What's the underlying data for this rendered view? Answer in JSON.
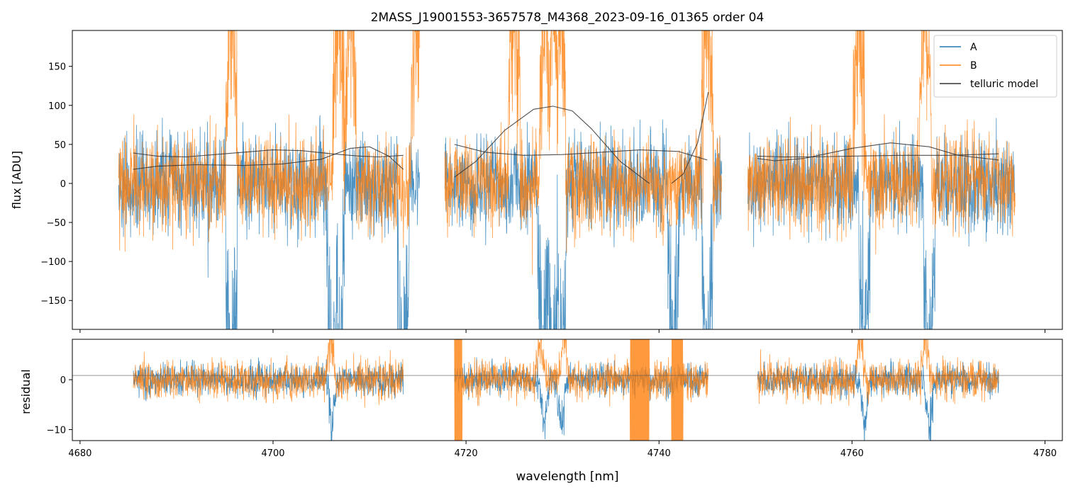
{
  "chart_data": {
    "type": "line",
    "title": "2MASS_J19001553-3657578_M4368_2023-09-16_01365  order 04",
    "xlabel": "wavelength [nm]",
    "xlim": [
      4679.2,
      4781.8
    ],
    "x_ticks": [
      4680,
      4700,
      4720,
      4740,
      4760,
      4780
    ],
    "x_tick_labels": [
      "4680",
      "4700",
      "4720",
      "4740",
      "4760",
      "4780"
    ],
    "panels": [
      {
        "name": "flux",
        "ylabel": "flux [ADU]",
        "ylim": [
          -187,
          196
        ],
        "y_ticks": [
          -150,
          -100,
          -50,
          0,
          50,
          100,
          150
        ],
        "y_tick_labels": [
          "−150",
          "−100",
          "−50",
          "0",
          "50",
          "100",
          "150"
        ],
        "legend": {
          "position": "top-right",
          "entries": [
            "A",
            "B",
            "telluric model"
          ]
        },
        "segments": [
          [
            4684.0,
            4715.2
          ],
          [
            4717.8,
            4746.5
          ],
          [
            4749.2,
            4776.9
          ]
        ],
        "spikes_A": [
          4695.7,
          4706.1,
          4706.8,
          4713.5,
          4728.0,
          4729.0,
          4729.8,
          4741.5,
          4745.0,
          4761.3,
          4768.0
        ],
        "spikes_B": [
          4695.7,
          4706.8,
          4708.0,
          4714.9,
          4725.0,
          4728.2,
          4729.0,
          4729.7,
          4745.0,
          4760.7,
          4767.6
        ],
        "telluric_model": [
          {
            "x": [
              4685.5,
              4688,
              4691,
              4695,
              4700,
              4703,
              4706,
              4709,
              4711,
              4713.5
            ],
            "y": [
              39,
              35,
              34,
              38,
              43,
              42,
              38,
              35,
              34,
              36
            ]
          },
          {
            "x": [
              4685.5,
              4688,
              4692,
              4697,
              4701,
              4705,
              4708,
              4710,
              4712,
              4713.5
            ],
            "y": [
              18,
              22,
              24,
              23,
              25,
              31,
              45,
              47,
              35,
              18
            ]
          },
          {
            "x": [
              4718.8,
              4722,
              4726,
              4730,
              4734,
              4738,
              4742,
              4745
            ],
            "y": [
              50,
              40,
              36,
              37,
              40,
              43,
              41,
              30
            ]
          },
          {
            "x": [
              4718.8,
              4721,
              4724,
              4727,
              4729,
              4731,
              4733,
              4736,
              4739
            ],
            "y": [
              8,
              28,
              68,
              95,
              99,
              93,
              70,
              28,
              0
            ]
          },
          {
            "x": [
              4741.3,
              4742.5,
              4744,
              4745.1
            ],
            "y": [
              0,
              12,
              52,
              117
            ]
          },
          {
            "x": [
              4750.2,
              4753,
              4756,
              4760,
              4765,
              4770,
              4775.2
            ],
            "y": [
              35,
              34,
              34,
              35,
              36,
              36,
              38
            ]
          },
          {
            "x": [
              4750.2,
              4752,
              4755,
              4760,
              4764,
              4768,
              4771,
              4775.2
            ],
            "y": [
              32,
              29,
              32,
              45,
              52,
              47,
              36,
              30
            ]
          }
        ]
      },
      {
        "name": "residual",
        "ylabel": "residual",
        "ylim": [
          -12.2,
          8.1
        ],
        "y_ticks": [
          -10,
          0
        ],
        "y_tick_labels": [
          "−10",
          "0"
        ],
        "reference_line_y": 0.85,
        "segments": [
          [
            4685.5,
            4713.5
          ],
          [
            4718.8,
            4745.1
          ],
          [
            4750.2,
            4775.2
          ]
        ],
        "dips_A": [
          4706.1,
          4728.1,
          4729.9,
          4761.3,
          4768.0
        ],
        "spikes_B": [
          4706.0,
          4727.7,
          4730.2,
          4760.8,
          4767.6
        ],
        "dropout_B": [
          [
            4718.8,
            4719.6
          ],
          [
            4737.0,
            4739.0
          ],
          [
            4741.3,
            4742.5
          ]
        ]
      }
    ],
    "series": [
      {
        "name": "A",
        "color": "#1f77b4"
      },
      {
        "name": "B",
        "color": "#ff7f0e"
      },
      {
        "name": "telluric model",
        "color": "#333333"
      }
    ]
  }
}
